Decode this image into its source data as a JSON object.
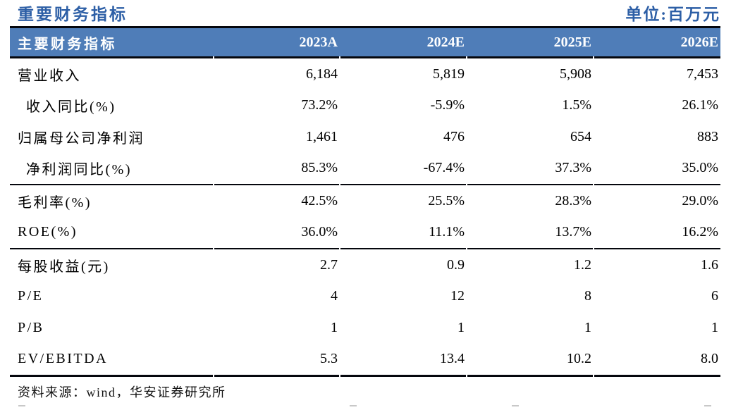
{
  "caption": {
    "title": "重要财务指标",
    "unit": "单位:百万元"
  },
  "table": {
    "header": {
      "label": "主要财务指标",
      "years": [
        "2023A",
        "2024E",
        "2025E",
        "2026E"
      ]
    },
    "rows": [
      {
        "label": "营业收入",
        "indent": false,
        "values": [
          "6,184",
          "5,819",
          "5,908",
          "7,453"
        ]
      },
      {
        "label": "收入同比(%)",
        "indent": true,
        "values": [
          "73.2%",
          "-5.9%",
          "1.5%",
          "26.1%"
        ]
      },
      {
        "label": "归属母公司净利润",
        "indent": false,
        "values": [
          "1,461",
          "476",
          "654",
          "883"
        ]
      },
      {
        "label": "净利润同比(%)",
        "indent": true,
        "values": [
          "85.3%",
          "-67.4%",
          "37.3%",
          "35.0%"
        ]
      },
      {
        "label": "毛利率(%)",
        "indent": false,
        "values": [
          "42.5%",
          "25.5%",
          "28.3%",
          "29.0%"
        ]
      },
      {
        "label": "ROE(%)",
        "indent": false,
        "values": [
          "36.0%",
          "11.1%",
          "13.7%",
          "16.2%"
        ]
      },
      {
        "label": "每股收益(元)",
        "indent": false,
        "values": [
          "2.7",
          "0.9",
          "1.2",
          "1.6"
        ]
      },
      {
        "label": "P/E",
        "indent": false,
        "values": [
          "4",
          "12",
          "8",
          "6"
        ]
      },
      {
        "label": "P/B",
        "indent": false,
        "values": [
          "1",
          "1",
          "1",
          "1"
        ]
      },
      {
        "label": "EV/EBITDA",
        "indent": false,
        "values": [
          "5.3",
          "13.4",
          "10.2",
          "8.0"
        ]
      }
    ]
  },
  "source_note": "资料来源：wind，华安证券研究所",
  "colors": {
    "accent_blue": "#2d5fa6",
    "header_bg": "#4f7db8",
    "header_text": "#ffffff",
    "rule_line": "#05070d",
    "body_text": "#000000"
  }
}
